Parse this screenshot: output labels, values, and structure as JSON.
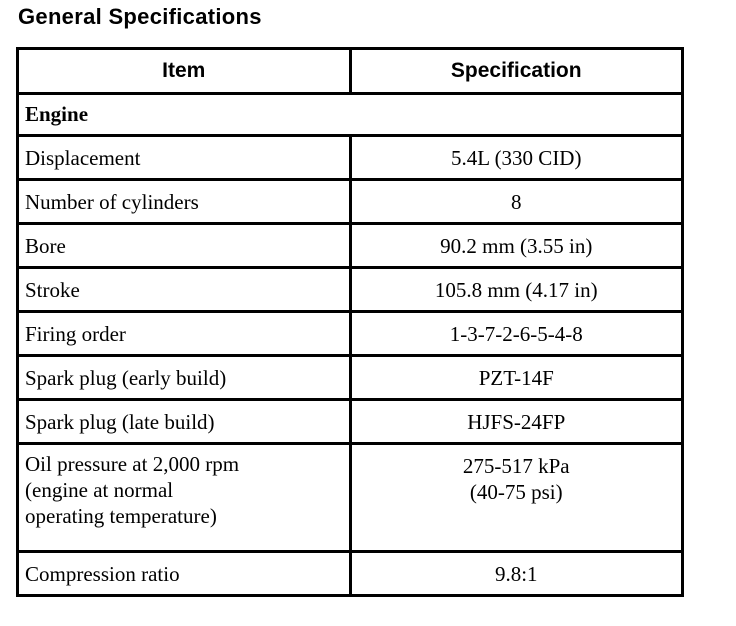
{
  "page": {
    "title": "General Specifications"
  },
  "table": {
    "headers": {
      "item": "Item",
      "spec": "Specification"
    },
    "section": "Engine",
    "rows": [
      {
        "item": "Displacement",
        "spec": "5.4L (330 CID)"
      },
      {
        "item": "Number of cylinders",
        "spec": "8"
      },
      {
        "item": "Bore",
        "spec": "90.2 mm (3.55 in)"
      },
      {
        "item": "Stroke",
        "spec": "105.8 mm (4.17 in)"
      },
      {
        "item": "Firing order",
        "spec": "1-3-7-2-6-5-4-8"
      },
      {
        "item": "Spark plug (early build)",
        "spec": "PZT-14F"
      },
      {
        "item": "Spark plug (late build)",
        "spec": "HJFS-24FP"
      },
      {
        "item": "Oil pressure at 2,000 rpm\n(engine at normal\noperating temperature)",
        "spec": "275-517 kPa\n(40-75 psi)"
      },
      {
        "item": "Compression ratio",
        "spec": "9.8:1"
      }
    ],
    "colors": {
      "text": "#000000",
      "border": "#000000",
      "background": "#ffffff"
    }
  }
}
